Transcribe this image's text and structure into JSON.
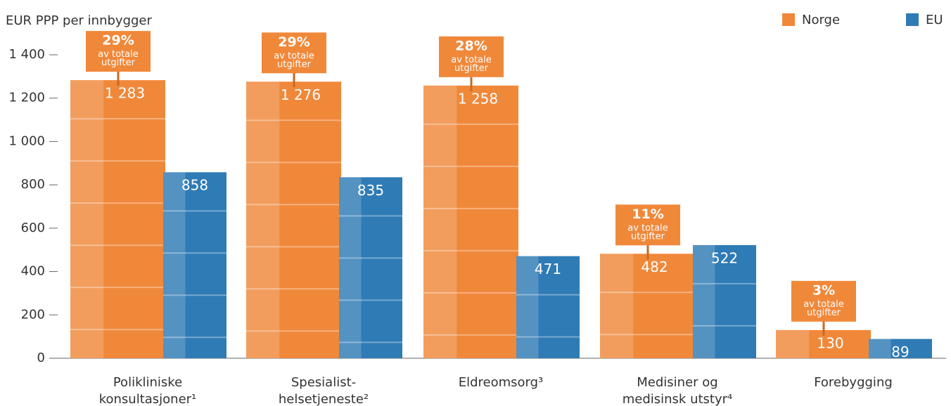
{
  "chart_data": {
    "type": "bar",
    "y_label": "EUR PPP per innbygger",
    "categories": [
      "Polikliniske\nkonsultasjoner¹",
      "Spesialist-\nhelsetjeneste²",
      "Eldreomsorg³",
      "Medisiner og\nmedisinsk utstyr⁴",
      "Forebygging"
    ],
    "series": [
      {
        "name": "Norge",
        "color": "#f0883a",
        "values": [
          1283,
          1276,
          1258,
          482,
          130
        ],
        "value_labels": [
          "1 283",
          "1 276",
          "1 258",
          "482",
          "130"
        ]
      },
      {
        "name": "EU",
        "color": "#2f7bb5",
        "values": [
          858,
          835,
          471,
          522,
          89
        ],
        "value_labels": [
          "858",
          "835",
          "471",
          "522",
          "89"
        ]
      }
    ],
    "share_labels": [
      "29%",
      "29%",
      "28%",
      "11%",
      "3%"
    ],
    "share_note": "av totale\nutgifter",
    "ylim": [
      0,
      1400
    ],
    "yticks": [
      0,
      200,
      400,
      600,
      800,
      {
        "value": 1000,
        "label": "1 000"
      },
      {
        "value": 1200,
        "label": "1 200"
      },
      {
        "value": 1400,
        "label": "1 400"
      }
    ],
    "legend": "top-right"
  }
}
